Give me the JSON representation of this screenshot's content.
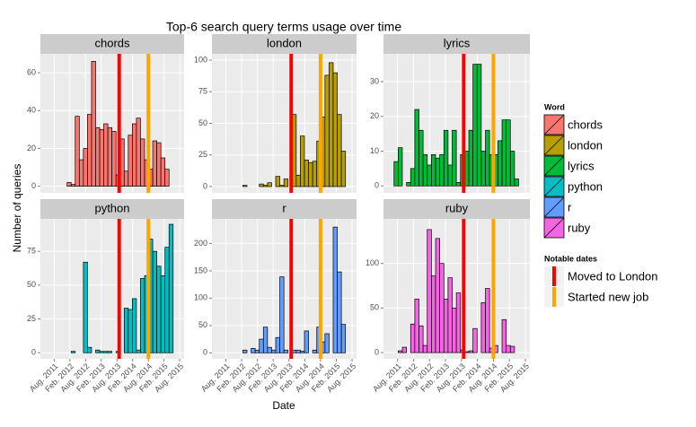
{
  "chart_data": {
    "type": "histogram",
    "title": "Top-6 search query terms usage over time",
    "xlabel": "Date",
    "ylabel": "Number of queries",
    "legend_title": "Word",
    "vlines_title": "Notable dates",
    "grid": true,
    "xlim": [
      2011.14,
      2015.72
    ],
    "xticks": [
      {
        "value": 2011.58,
        "label": "Aug. 2011"
      },
      {
        "value": 2012.08,
        "label": "Feb. 2012"
      },
      {
        "value": 2012.58,
        "label": "Aug. 2012"
      },
      {
        "value": 2013.08,
        "label": "Feb. 2013"
      },
      {
        "value": 2013.58,
        "label": "Aug. 2013"
      },
      {
        "value": 2014.08,
        "label": "Feb. 2014"
      },
      {
        "value": 2014.58,
        "label": "Aug. 2014"
      },
      {
        "value": 2015.08,
        "label": "Feb. 2015"
      },
      {
        "value": 2015.58,
        "label": "Aug. 2015"
      }
    ],
    "bins": [
      2011.47,
      2011.6,
      2011.73,
      2011.86,
      2011.99,
      2012.12,
      2012.25,
      2012.38,
      2012.51,
      2012.64,
      2012.77,
      2012.9,
      2013.03,
      2013.16,
      2013.29,
      2013.42,
      2013.55,
      2013.68,
      2013.81,
      2013.94,
      2014.07,
      2014.2,
      2014.33,
      2014.46,
      2014.59,
      2014.72,
      2014.85,
      2014.98,
      2015.11,
      2015.24,
      2015.37
    ],
    "vlines": [
      {
        "name": "Moved to London",
        "color": "#ff0000",
        "x": 2013.65
      },
      {
        "name": "Started new job",
        "color": "#ffa500",
        "x": 2014.58
      }
    ],
    "series": [
      {
        "name": "chords",
        "color": "#f8766d",
        "ylim": [
          -3.5,
          70
        ],
        "yticks": [
          0,
          20,
          40,
          60
        ],
        "values": [
          0,
          0,
          0,
          0,
          2,
          1,
          37,
          14,
          20,
          38,
          66,
          31,
          30,
          33,
          31,
          29,
          6,
          25,
          8,
          27,
          33,
          36,
          25,
          14,
          9,
          24,
          23,
          15,
          9,
          0
        ]
      },
      {
        "name": "london",
        "color": "#b79f00",
        "ylim": [
          -5,
          105
        ],
        "yticks": [
          0,
          25,
          50,
          75,
          100
        ],
        "values": [
          0,
          0,
          0,
          0,
          0,
          1,
          0,
          0,
          0,
          2,
          1,
          3,
          0,
          8,
          1,
          6,
          0,
          57,
          9,
          40,
          21,
          19,
          20,
          36,
          55,
          88,
          98,
          90,
          57,
          28
        ]
      },
      {
        "name": "lyrics",
        "color": "#00ba38",
        "ylim": [
          -2,
          38
        ],
        "yticks": [
          0,
          10,
          20,
          30
        ],
        "values": [
          7,
          11,
          0,
          1,
          5,
          22,
          16,
          9,
          6,
          9,
          8,
          9,
          16,
          6,
          16,
          1,
          9,
          10,
          16,
          35,
          35,
          10,
          16,
          9,
          9,
          13,
          19,
          19,
          10,
          2
        ]
      },
      {
        "name": "python",
        "color": "#00bfc4",
        "ylim": [
          -4.5,
          99
        ],
        "yticks": [
          0,
          25,
          50,
          75
        ],
        "values": [
          0,
          0,
          0,
          0,
          0,
          1,
          0,
          0,
          67,
          4,
          0,
          2,
          1,
          1,
          1,
          0,
          1,
          0,
          33,
          32,
          40,
          2,
          55,
          57,
          84,
          75,
          64,
          57,
          78,
          95
        ]
      },
      {
        "name": "r",
        "color": "#619cff",
        "ylim": [
          -11,
          245
        ],
        "yticks": [
          0,
          50,
          100,
          150,
          200
        ],
        "values": [
          0,
          0,
          0,
          0,
          0,
          5,
          0,
          8,
          5,
          25,
          47,
          10,
          5,
          28,
          139,
          5,
          0,
          5,
          5,
          3,
          40,
          0,
          5,
          47,
          20,
          35,
          0,
          230,
          148,
          52
        ]
      },
      {
        "name": "ruby",
        "color": "#f564e3",
        "ylim": [
          -7,
          150
        ],
        "yticks": [
          0,
          50,
          100
        ],
        "values": [
          0,
          2,
          6,
          0,
          32,
          60,
          30,
          8,
          138,
          86,
          128,
          100,
          60,
          84,
          50,
          67,
          3,
          1,
          2,
          27,
          0,
          56,
          72,
          5,
          8,
          0,
          37,
          8,
          7,
          0
        ]
      }
    ]
  }
}
